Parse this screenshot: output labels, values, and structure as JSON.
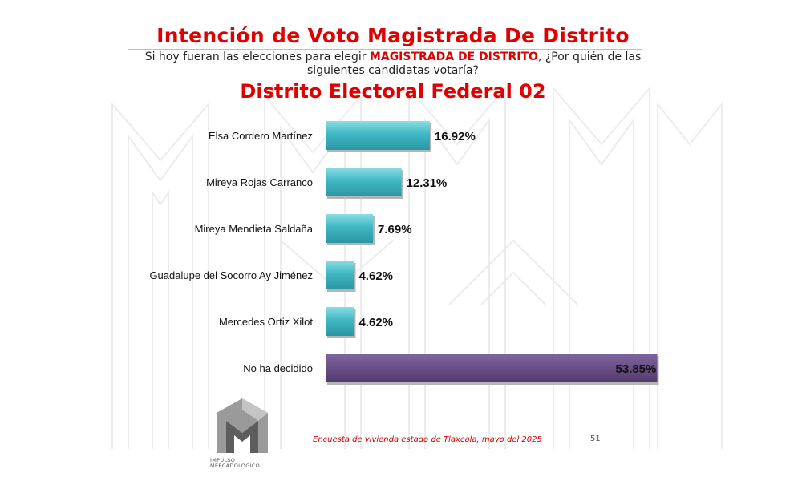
{
  "header": {
    "title": "Intención de Voto Magistrada De Distrito",
    "question_before": "Si hoy fueran las elecciones para elegir ",
    "question_highlight": "MAGISTRADA DE DISTRITO",
    "question_after": ", ¿Por quién de las siguientes candidatas votaría?",
    "subtitle": "Distrito Electoral Federal 02"
  },
  "chart_data": {
    "type": "bar",
    "orientation": "horizontal",
    "categories": [
      "Elsa Cordero Martínez",
      "Mireya Rojas Carranco",
      "Mireya Mendieta Saldaña",
      "Guadalupe del Socorro Ay Jiménez",
      "Mercedes Ortiz Xilot",
      "No ha decidido"
    ],
    "values": [
      16.92,
      12.31,
      7.69,
      4.62,
      4.62,
      53.85
    ],
    "value_labels": [
      "16.92%",
      "12.31%",
      "7.69%",
      "4.62%",
      "4.62%",
      "53.85%"
    ],
    "bar_colors": [
      "#3fb8c4",
      "#3fb8c4",
      "#3fb8c4",
      "#3fb8c4",
      "#3fb8c4",
      "#6a4f86"
    ],
    "xlim": [
      0,
      56
    ],
    "grid": false,
    "legend": "none"
  },
  "footer": {
    "note": "Encuesta de vivienda estado de Tlaxcala, mayo   del 2025",
    "page": "51",
    "logo_name": "IMPULSO",
    "logo_sub": "MERCADOLÓGICO"
  },
  "colors": {
    "title_red": "#e00000",
    "bar_teal": "#3fb8c4",
    "bar_purple": "#6a4f86"
  }
}
